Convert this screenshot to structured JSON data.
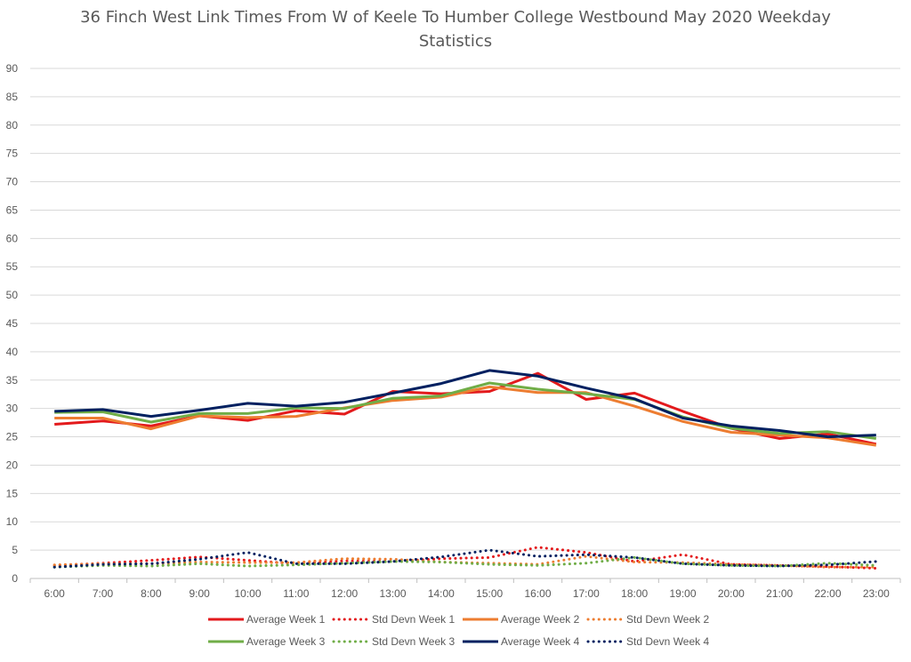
{
  "chart_data": {
    "type": "line",
    "title_line1": "36 Finch West Link Times From W of Keele To Humber College Westbound May 2020 Weekday",
    "title_line2": "Statistics",
    "xlabel": "",
    "ylabel": "",
    "ylim": [
      0,
      90
    ],
    "yticks": [
      0,
      5,
      10,
      15,
      20,
      25,
      30,
      35,
      40,
      45,
      50,
      55,
      60,
      65,
      70,
      75,
      80,
      85,
      90
    ],
    "grid": true,
    "legend_position": "bottom",
    "categories": [
      "6:00",
      "7:00",
      "8:00",
      "9:00",
      "10:00",
      "11:00",
      "12:00",
      "13:00",
      "14:00",
      "15:00",
      "16:00",
      "17:00",
      "18:00",
      "19:00",
      "20:00",
      "21:00",
      "22:00",
      "23:00"
    ],
    "series": [
      {
        "name": "Average Week 1",
        "color": "#e31a1c",
        "style": "solid",
        "values": [
          27.2,
          27.8,
          26.9,
          28.7,
          27.9,
          29.6,
          29.0,
          33.0,
          32.6,
          33.0,
          36.2,
          31.6,
          32.7,
          29.5,
          26.5,
          24.7,
          25.5,
          23.7
        ]
      },
      {
        "name": "Std Devn Week 1",
        "color": "#e31a1c",
        "style": "dotted",
        "values": [
          2.3,
          2.7,
          3.2,
          3.8,
          3.2,
          2.6,
          3.1,
          3.0,
          3.5,
          3.7,
          5.5,
          4.6,
          3.0,
          4.2,
          2.5,
          2.3,
          2.1,
          1.8
        ]
      },
      {
        "name": "Average Week 2",
        "color": "#ed7d31",
        "style": "solid",
        "values": [
          28.3,
          28.3,
          26.4,
          28.7,
          28.4,
          28.6,
          30.1,
          31.4,
          32.0,
          33.8,
          32.8,
          32.8,
          30.4,
          27.7,
          25.8,
          25.3,
          24.8,
          23.5
        ]
      },
      {
        "name": "Std Devn Week 2",
        "color": "#ed7d31",
        "style": "dotted",
        "values": [
          2.4,
          2.6,
          2.6,
          2.9,
          2.8,
          2.8,
          3.5,
          3.4,
          2.9,
          2.7,
          2.5,
          3.9,
          2.9,
          2.8,
          2.5,
          2.3,
          2.0,
          2.0
        ]
      },
      {
        "name": "Average Week 3",
        "color": "#70ad47",
        "style": "solid",
        "values": [
          29.3,
          29.4,
          27.6,
          29.1,
          29.1,
          30.1,
          30.0,
          31.8,
          32.2,
          34.5,
          33.4,
          32.6,
          31.6,
          28.5,
          26.5,
          25.6,
          25.9,
          24.7
        ]
      },
      {
        "name": "Std Devn Week 3",
        "color": "#70ad47",
        "style": "dotted",
        "values": [
          2.0,
          2.3,
          2.2,
          2.6,
          2.2,
          2.4,
          2.7,
          3.0,
          2.9,
          2.5,
          2.3,
          2.7,
          3.7,
          2.6,
          2.3,
          2.2,
          2.7,
          2.3
        ]
      },
      {
        "name": "Average Week 4",
        "color": "#002060",
        "style": "solid",
        "values": [
          29.5,
          29.8,
          28.6,
          29.7,
          30.9,
          30.4,
          31.1,
          32.7,
          34.4,
          36.7,
          35.7,
          33.6,
          31.7,
          28.3,
          26.9,
          26.1,
          25.0,
          25.3
        ]
      },
      {
        "name": "Std Devn Week 4",
        "color": "#002060",
        "style": "dotted",
        "values": [
          2.0,
          2.5,
          2.6,
          3.4,
          4.6,
          2.6,
          2.6,
          3.0,
          3.8,
          5.0,
          3.9,
          4.2,
          3.7,
          2.6,
          2.3,
          2.2,
          2.4,
          3.0
        ]
      }
    ]
  }
}
